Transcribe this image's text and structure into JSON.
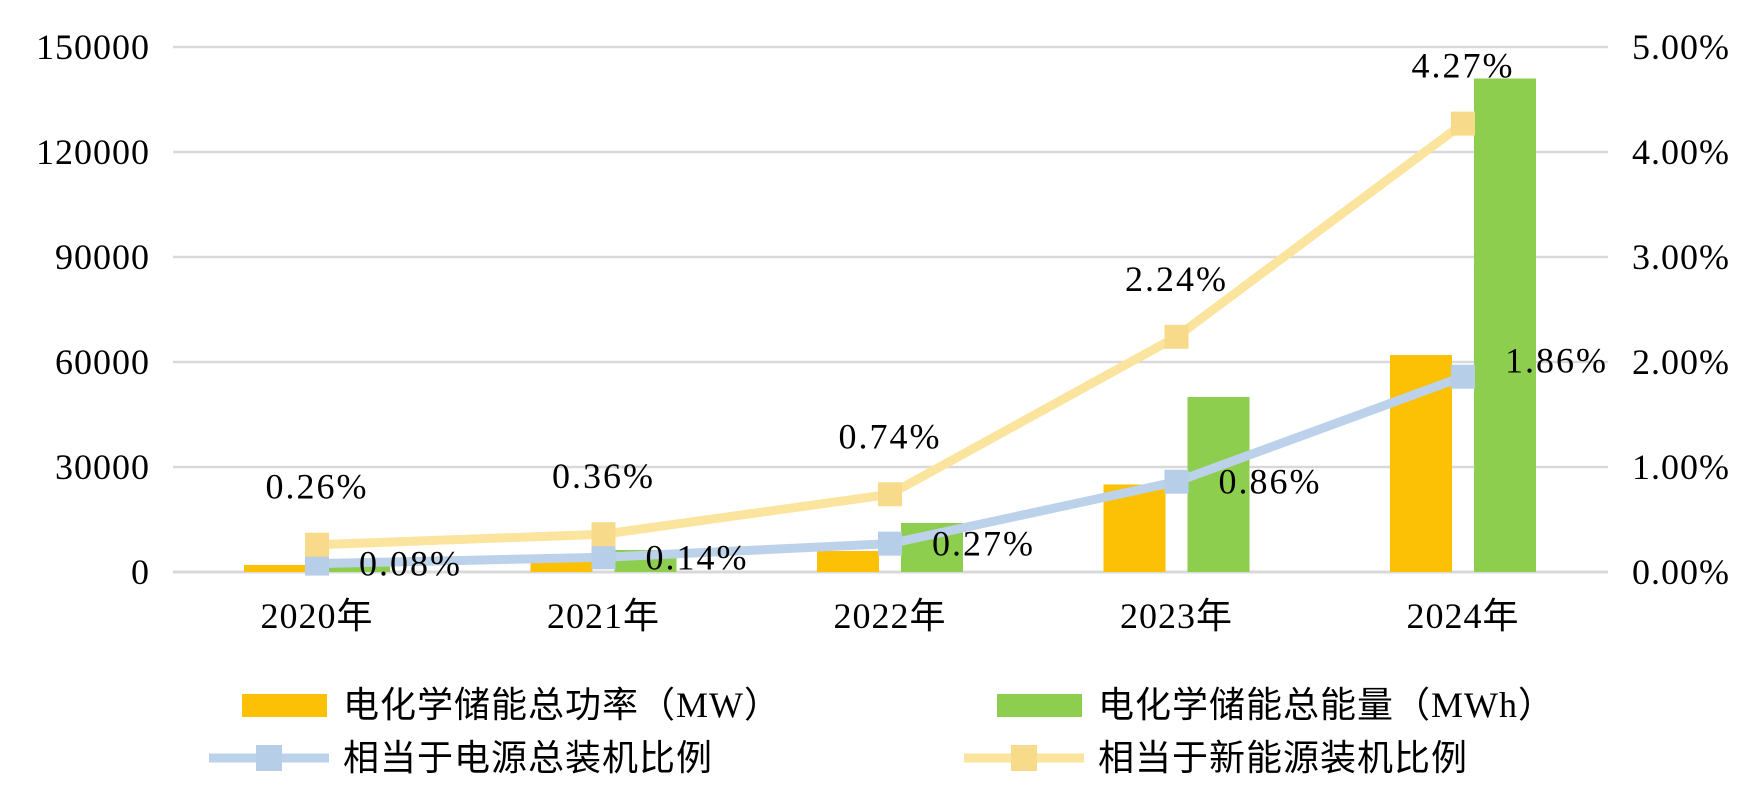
{
  "chart_data": {
    "type": "combo-bar-line",
    "title": "",
    "categories": [
      "2020年",
      "2021年",
      "2022年",
      "2023年",
      "2024年"
    ],
    "left_axis": {
      "min": 0,
      "max": 150000,
      "tick_interval": 30000,
      "tick_labels": [
        "0",
        "30000",
        "60000",
        "90000",
        "120000",
        "150000"
      ]
    },
    "right_axis": {
      "min_pct": 0,
      "max_pct": 5,
      "tick_interval_pct": 1,
      "tick_labels": [
        "0.00%",
        "1.00%",
        "2.00%",
        "3.00%",
        "4.00%",
        "5.00%"
      ]
    },
    "grid": true,
    "legend_position": "bottom",
    "series": [
      {
        "name": "电化学储能总功率（MW）",
        "type": "bar",
        "axis": "left",
        "color": "#FCC004",
        "values": [
          2000,
          3000,
          6000,
          25000,
          62000
        ]
      },
      {
        "name": "电化学储能总能量（MWh）",
        "type": "bar",
        "axis": "left",
        "color": "#8DCE4F",
        "values": [
          2300,
          6300,
          14000,
          50000,
          141000
        ]
      },
      {
        "name": "相当于电源总装机比例",
        "type": "line",
        "axis": "right",
        "color": "#BCD2EA",
        "marker_color": "#B7CEE8",
        "values_pct": [
          0.08,
          0.14,
          0.27,
          0.86,
          1.86
        ],
        "point_labels": [
          "0.08%",
          "0.14%",
          "0.27%",
          "0.86%",
          "1.86%"
        ]
      },
      {
        "name": "相当于新能源装机比例",
        "type": "line",
        "axis": "right",
        "color": "#FBE49E",
        "marker_color": "#F8DB8A",
        "values_pct": [
          0.26,
          0.36,
          0.74,
          2.24,
          4.27
        ],
        "point_labels": [
          "0.26%",
          "0.36%",
          "0.74%",
          "2.24%",
          "4.27%"
        ]
      }
    ],
    "colors": {
      "grid_line": "#D9D9D9",
      "text": "#000000",
      "background": "#FFFFFF"
    }
  }
}
